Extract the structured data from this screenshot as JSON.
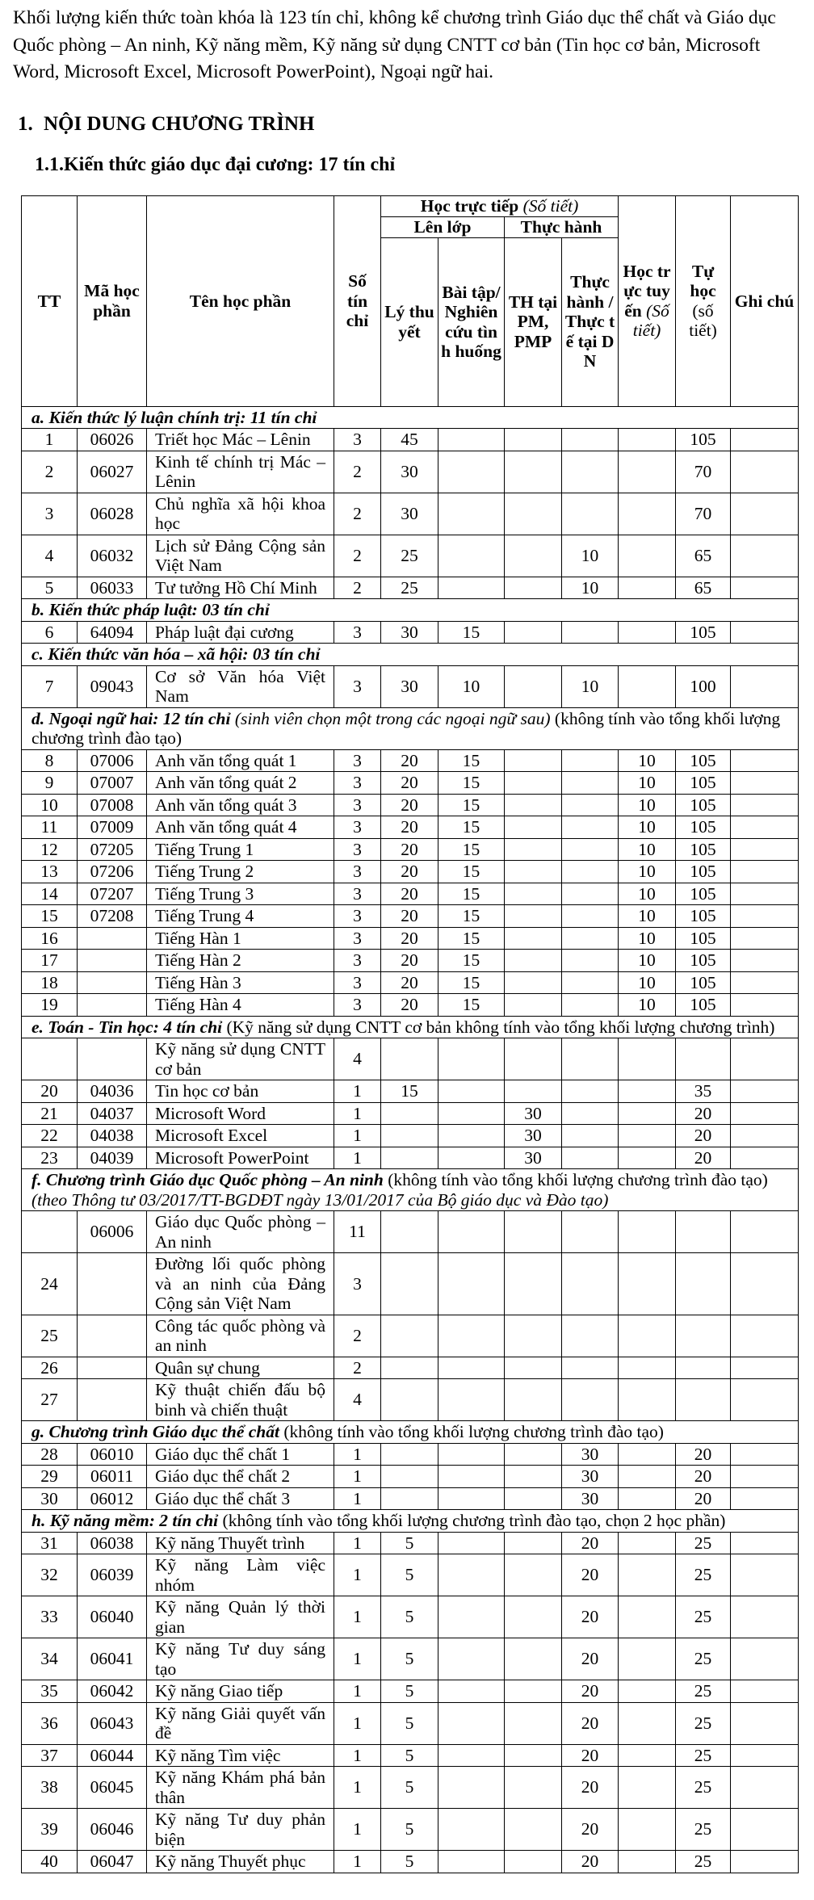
{
  "intro": "Khối lượng kiến thức toàn khóa là 123 tín chỉ, không kể chương trình Giáo dục thể chất và Giáo dục Quốc phòng – An ninh, Kỹ năng mềm, Kỹ năng sử dụng CNTT cơ bản (Tin học cơ bản, Microsoft Word, Microsoft Excel, Microsoft PowerPoint), Ngoại ngữ hai.",
  "heading1": {
    "num": "1.",
    "text": "NỘI DUNG CHƯƠNG TRÌNH"
  },
  "heading2": "1.1.Kiến thức giáo dục đại cương: 17 tín chỉ",
  "header": {
    "tt": "TT",
    "code": "Mã học phần",
    "name": "Tên học phần",
    "credits": "Số tín chỉ",
    "direct": "Học trực tiếp",
    "direct_unit": "(Số tiết)",
    "class": "Lên lớp",
    "practice": "Thực hành",
    "theory": "Lý thuyết",
    "exercise": "Bài tập/ Nghiên cứu tình huống",
    "lab": "TH tại PM, PMP",
    "field": "Thực hành / Thực tế tại DN",
    "online": "Học trực tuyến",
    "online_unit": "(Số tiết)",
    "self": "Tự học",
    "self_unit": "(số tiết)",
    "note": "Ghi chú"
  },
  "body": [
    {
      "section": [
        {
          "t": "a. Kiến thức lý luận chính trị: 11 tín chỉ",
          "s": "bi"
        }
      ]
    },
    {
      "row": [
        "1",
        "06026",
        "Triết học Mác – Lênin",
        "3",
        "45",
        "",
        "",
        "",
        "",
        "105",
        ""
      ]
    },
    {
      "row": [
        "2",
        "06027",
        "Kinh tế chính trị Mác – Lênin",
        "2",
        "30",
        "",
        "",
        "",
        "",
        "70",
        ""
      ]
    },
    {
      "row": [
        "3",
        "06028",
        "Chủ nghĩa xã hội khoa học",
        "2",
        "30",
        "",
        "",
        "",
        "",
        "70",
        ""
      ]
    },
    {
      "row": [
        "4",
        "06032",
        "Lịch sử Đảng Cộng sản Việt Nam",
        "2",
        "25",
        "",
        "",
        "10",
        "",
        "65",
        ""
      ]
    },
    {
      "row": [
        "5",
        "06033",
        "Tư tưởng Hồ Chí Minh",
        "2",
        "25",
        "",
        "",
        "10",
        "",
        "65",
        ""
      ]
    },
    {
      "section": [
        {
          "t": "b. Kiến thức pháp luật: 03 tín chỉ",
          "s": "bi"
        }
      ]
    },
    {
      "row": [
        "6",
        "64094",
        "Pháp luật đại cương",
        "3",
        "30",
        "15",
        "",
        "",
        "",
        "105",
        ""
      ]
    },
    {
      "section": [
        {
          "t": "c. Kiến thức văn hóa – xã hội: 03 tín chỉ",
          "s": "bi"
        }
      ]
    },
    {
      "row": [
        "7",
        "09043",
        "Cơ sở Văn hóa Việt Nam",
        "3",
        "30",
        "10",
        "",
        "10",
        "",
        "100",
        ""
      ]
    },
    {
      "section": [
        {
          "t": "d. Ngoại ngữ hai: 12 tín chỉ",
          "s": "bi"
        },
        {
          "t": " (sinh viên chọn một trong các ngoại ngữ sau)",
          "s": "i"
        },
        {
          "t": " (không tính vào tổng khối lượng chương trình đào tạo)",
          "s": "n"
        }
      ]
    },
    {
      "row": [
        "8",
        "07006",
        "Anh văn tổng quát 1",
        "3",
        "20",
        "15",
        "",
        "",
        "10",
        "105",
        ""
      ]
    },
    {
      "row": [
        "9",
        "07007",
        "Anh văn tổng quát 2",
        "3",
        "20",
        "15",
        "",
        "",
        "10",
        "105",
        ""
      ]
    },
    {
      "row": [
        "10",
        "07008",
        "Anh văn tổng quát 3",
        "3",
        "20",
        "15",
        "",
        "",
        "10",
        "105",
        ""
      ]
    },
    {
      "row": [
        "11",
        "07009",
        "Anh văn tổng quát 4",
        "3",
        "20",
        "15",
        "",
        "",
        "10",
        "105",
        ""
      ]
    },
    {
      "row": [
        "12",
        "07205",
        "Tiếng Trung 1",
        "3",
        "20",
        "15",
        "",
        "",
        "10",
        "105",
        ""
      ]
    },
    {
      "row": [
        "13",
        "07206",
        "Tiếng Trung 2",
        "3",
        "20",
        "15",
        "",
        "",
        "10",
        "105",
        ""
      ]
    },
    {
      "row": [
        "14",
        "07207",
        "Tiếng Trung 3",
        "3",
        "20",
        "15",
        "",
        "",
        "10",
        "105",
        ""
      ]
    },
    {
      "row": [
        "15",
        "07208",
        "Tiếng Trung 4",
        "3",
        "20",
        "15",
        "",
        "",
        "10",
        "105",
        ""
      ]
    },
    {
      "row": [
        "16",
        "",
        "Tiếng Hàn 1",
        "3",
        "20",
        "15",
        "",
        "",
        "10",
        "105",
        ""
      ]
    },
    {
      "row": [
        "17",
        "",
        "Tiếng Hàn 2",
        "3",
        "20",
        "15",
        "",
        "",
        "10",
        "105",
        ""
      ]
    },
    {
      "row": [
        "18",
        "",
        "Tiếng Hàn 3",
        "3",
        "20",
        "15",
        "",
        "",
        "10",
        "105",
        ""
      ]
    },
    {
      "row": [
        "19",
        "",
        "Tiếng Hàn 4",
        "3",
        "20",
        "15",
        "",
        "",
        "10",
        "105",
        ""
      ]
    },
    {
      "section": [
        {
          "t": "e. Toán - Tin học: 4 tín chỉ",
          "s": "bi"
        },
        {
          "t": " (Kỹ năng sử dụng CNTT cơ bản không tính vào tổng khối lượng chương trình)",
          "s": "n"
        }
      ]
    },
    {
      "row": [
        "",
        "",
        "Kỹ năng sử dụng CNTT cơ bản",
        "4",
        "",
        "",
        "",
        "",
        "",
        "",
        ""
      ]
    },
    {
      "row": [
        "20",
        "04036",
        "Tin học cơ bản",
        "1",
        "15",
        "",
        "",
        "",
        "",
        "35",
        ""
      ]
    },
    {
      "row": [
        "21",
        "04037",
        "Microsoft Word",
        "1",
        "",
        "",
        "30",
        "",
        "",
        "20",
        ""
      ]
    },
    {
      "row": [
        "22",
        "04038",
        "Microsoft Excel",
        "1",
        "",
        "",
        "30",
        "",
        "",
        "20",
        ""
      ]
    },
    {
      "row": [
        "23",
        "04039",
        "Microsoft PowerPoint",
        "1",
        "",
        "",
        "30",
        "",
        "",
        "20",
        ""
      ]
    },
    {
      "section": [
        {
          "t": "f. Chương trình Giáo dục Quốc phòng – An ninh",
          "s": "bi"
        },
        {
          "t": " (không tính vào tổng khối lượng chương trình đào tạo) ",
          "s": "n"
        },
        {
          "t": "(theo Thông tư 03/2017/TT-BGDĐT ngày 13/01/2017 của Bộ giáo dục và Đào tạo)",
          "s": "i"
        }
      ]
    },
    {
      "row": [
        "",
        "06006",
        "Giáo dục Quốc phòng – An ninh",
        "11",
        "",
        "",
        "",
        "",
        "",
        "",
        ""
      ]
    },
    {
      "row": [
        "24",
        "",
        "Đường lối quốc phòng và an ninh của Đảng Cộng sản Việt Nam",
        "3",
        "",
        "",
        "",
        "",
        "",
        "",
        ""
      ]
    },
    {
      "row": [
        "25",
        "",
        "Công tác quốc phòng và an ninh",
        "2",
        "",
        "",
        "",
        "",
        "",
        "",
        ""
      ]
    },
    {
      "row": [
        "26",
        "",
        "Quân sự chung",
        "2",
        "",
        "",
        "",
        "",
        "",
        "",
        ""
      ]
    },
    {
      "row": [
        "27",
        "",
        "Kỹ thuật chiến đấu bộ binh và chiến thuật",
        "4",
        "",
        "",
        "",
        "",
        "",
        "",
        ""
      ]
    },
    {
      "section": [
        {
          "t": "g. Chương trình Giáo dục thể chất",
          "s": "bi"
        },
        {
          "t": " (không tính vào tổng khối lượng chương trình đào tạo)",
          "s": "n"
        }
      ]
    },
    {
      "row": [
        "28",
        "06010",
        "Giáo dục thể chất 1",
        "1",
        "",
        "",
        "",
        "30",
        "",
        "20",
        ""
      ]
    },
    {
      "row": [
        "29",
        "06011",
        "Giáo dục thể chất 2",
        "1",
        "",
        "",
        "",
        "30",
        "",
        "20",
        ""
      ]
    },
    {
      "row": [
        "30",
        "06012",
        "Giáo dục thể chất 3",
        "1",
        "",
        "",
        "",
        "30",
        "",
        "20",
        ""
      ]
    },
    {
      "section": [
        {
          "t": "h. Kỹ năng mềm: 2 tín chỉ",
          "s": "bi"
        },
        {
          "t": " (không tính vào tổng khối lượng chương trình đào tạo, chọn 2 học phần)",
          "s": "n"
        }
      ]
    },
    {
      "row": [
        "31",
        "06038",
        "Kỹ năng Thuyết trình",
        "1",
        "5",
        "",
        "",
        "20",
        "",
        "25",
        ""
      ]
    },
    {
      "row": [
        "32",
        "06039",
        "Kỹ năng Làm việc nhóm",
        "1",
        "5",
        "",
        "",
        "20",
        "",
        "25",
        ""
      ]
    },
    {
      "row": [
        "33",
        "06040",
        "Kỹ năng Quản lý thời gian",
        "1",
        "5",
        "",
        "",
        "20",
        "",
        "25",
        ""
      ]
    },
    {
      "row": [
        "34",
        "06041",
        "Kỹ năng Tư duy sáng tạo",
        "1",
        "5",
        "",
        "",
        "20",
        "",
        "25",
        ""
      ]
    },
    {
      "row": [
        "35",
        "06042",
        "Kỹ năng Giao tiếp",
        "1",
        "5",
        "",
        "",
        "20",
        "",
        "25",
        ""
      ]
    },
    {
      "row": [
        "36",
        "06043",
        "Kỹ năng Giải quyết vấn đề",
        "1",
        "5",
        "",
        "",
        "20",
        "",
        "25",
        ""
      ]
    },
    {
      "row": [
        "37",
        "06044",
        "Kỹ năng Tìm việc",
        "1",
        "5",
        "",
        "",
        "20",
        "",
        "25",
        ""
      ]
    },
    {
      "row": [
        "38",
        "06045",
        "Kỹ năng Khám phá bản thân",
        "1",
        "5",
        "",
        "",
        "20",
        "",
        "25",
        ""
      ]
    },
    {
      "row": [
        "39",
        "06046",
        "Kỹ năng Tư duy phản biện",
        "1",
        "5",
        "",
        "",
        "20",
        "",
        "25",
        ""
      ]
    },
    {
      "row": [
        "40",
        "06047",
        "Kỹ năng Thuyết phục",
        "1",
        "5",
        "",
        "",
        "20",
        "",
        "25",
        ""
      ]
    }
  ]
}
